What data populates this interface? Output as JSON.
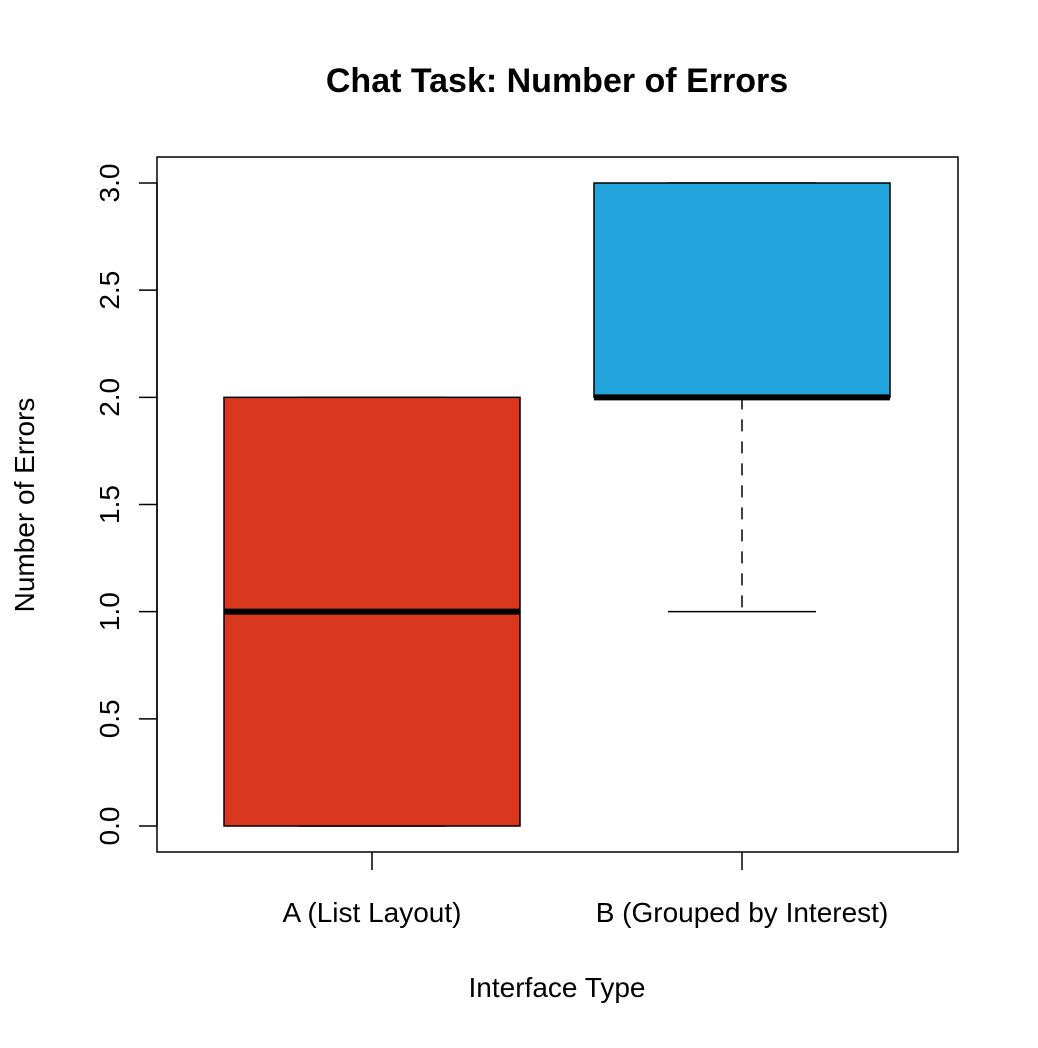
{
  "chart_data": {
    "type": "boxplot",
    "title": "Chat Task: Number of Errors",
    "xlabel": "Interface Type",
    "ylabel": "Number of Errors",
    "categories": [
      "A (List Layout)",
      "B (Grouped by Interest)"
    ],
    "ylim": [
      0,
      3
    ],
    "yticks": [
      "0.0",
      "0.5",
      "1.0",
      "1.5",
      "2.0",
      "2.5",
      "3.0"
    ],
    "boxes": [
      {
        "category": "A (List Layout)",
        "min": 0,
        "q1": 0,
        "median": 1,
        "q3": 2,
        "max": 2,
        "color": "#d9381e"
      },
      {
        "category": "B (Grouped by Interest)",
        "min": 1,
        "q1": 2,
        "median": 2,
        "q3": 3,
        "max": 3,
        "color": "#22a4dc"
      }
    ],
    "grid": false,
    "legend": "none"
  }
}
